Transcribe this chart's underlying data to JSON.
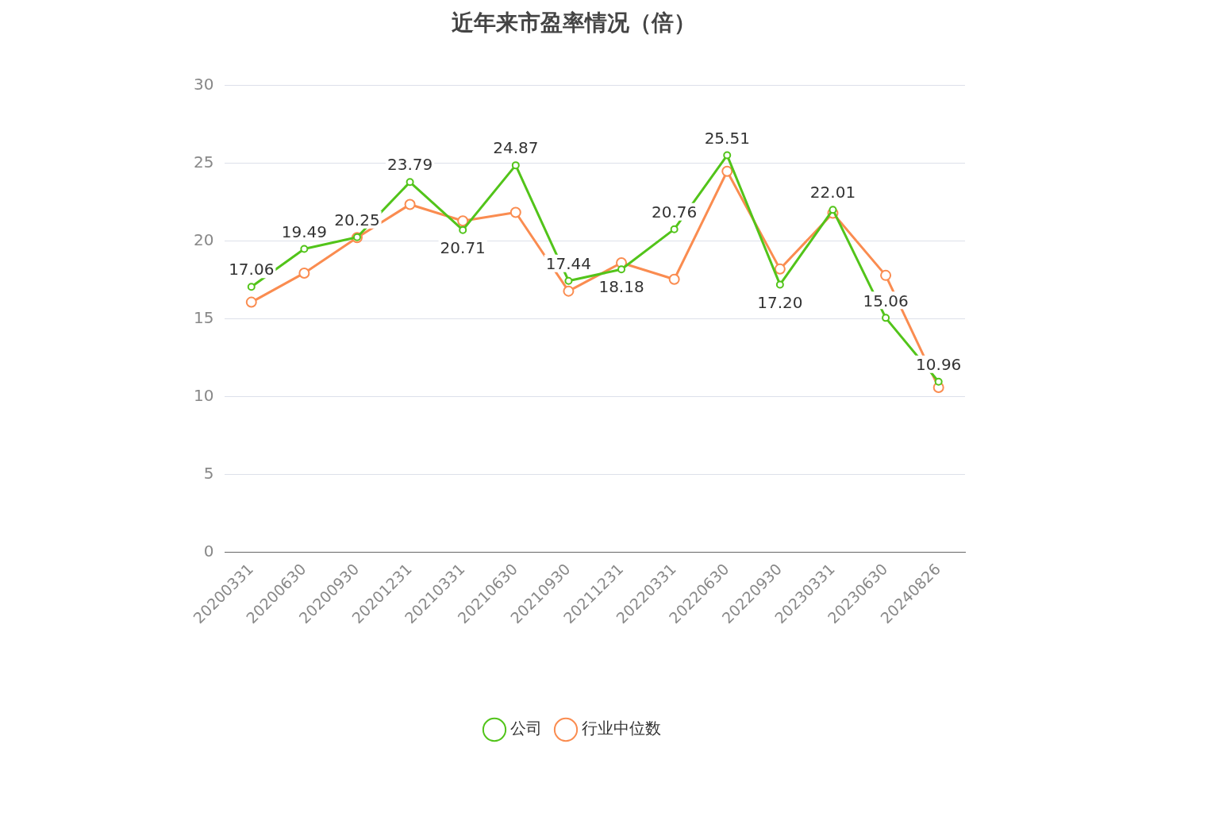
{
  "chart_data": {
    "type": "line",
    "title": "近年来市盈率情况（倍）",
    "categories": [
      "20200331",
      "20200630",
      "20200930",
      "20201231",
      "20210331",
      "20210630",
      "20210930",
      "20211231",
      "20220331",
      "20220630",
      "20220930",
      "20230331",
      "20230630",
      "20240826"
    ],
    "series": [
      {
        "name": "公司",
        "color": "#52c41a",
        "values": [
          17.06,
          19.49,
          20.25,
          23.79,
          20.71,
          24.87,
          17.44,
          18.18,
          20.76,
          25.51,
          17.2,
          22.01,
          15.06,
          10.96
        ],
        "value_labels": [
          "17.06",
          "19.49",
          "20.25",
          "23.79",
          "20.71",
          "24.87",
          "17.44",
          "18.18",
          "20.76",
          "25.51",
          "17.20",
          "22.01",
          "15.06",
          "10.96"
        ]
      },
      {
        "name": "行业中位数",
        "color": "#fa8c50",
        "values": [
          16.07,
          17.94,
          20.22,
          22.35,
          21.29,
          21.84,
          16.78,
          18.6,
          17.54,
          24.48,
          18.2,
          21.79,
          17.79,
          10.59
        ]
      }
    ],
    "ylim": [
      0,
      30
    ],
    "yticks": [
      0,
      5,
      10,
      15,
      20,
      25,
      30
    ],
    "grid": "y",
    "legend": "bottom",
    "marker": "circle",
    "line_style": "solid"
  }
}
